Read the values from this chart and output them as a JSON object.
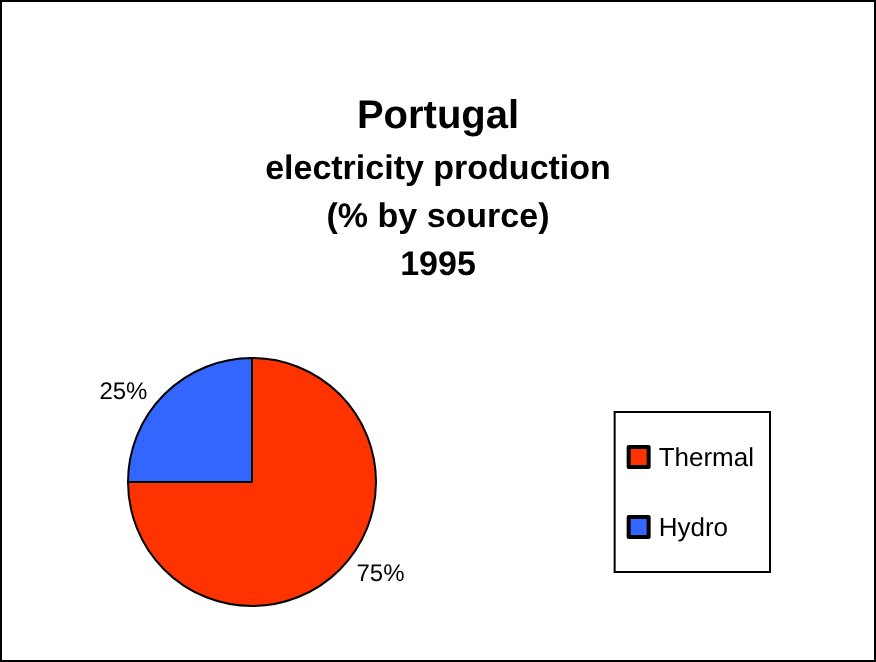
{
  "chart_data": {
    "type": "pie",
    "title": "Portugal",
    "subtitle": "electricity production\n(% by source)\n1995",
    "categories": [
      "Thermal",
      "Hydro"
    ],
    "values": [
      75,
      25
    ],
    "colors": [
      "#ff3300",
      "#3366ff"
    ],
    "value_labels": [
      "75%",
      "25%"
    ],
    "legend": "right"
  }
}
